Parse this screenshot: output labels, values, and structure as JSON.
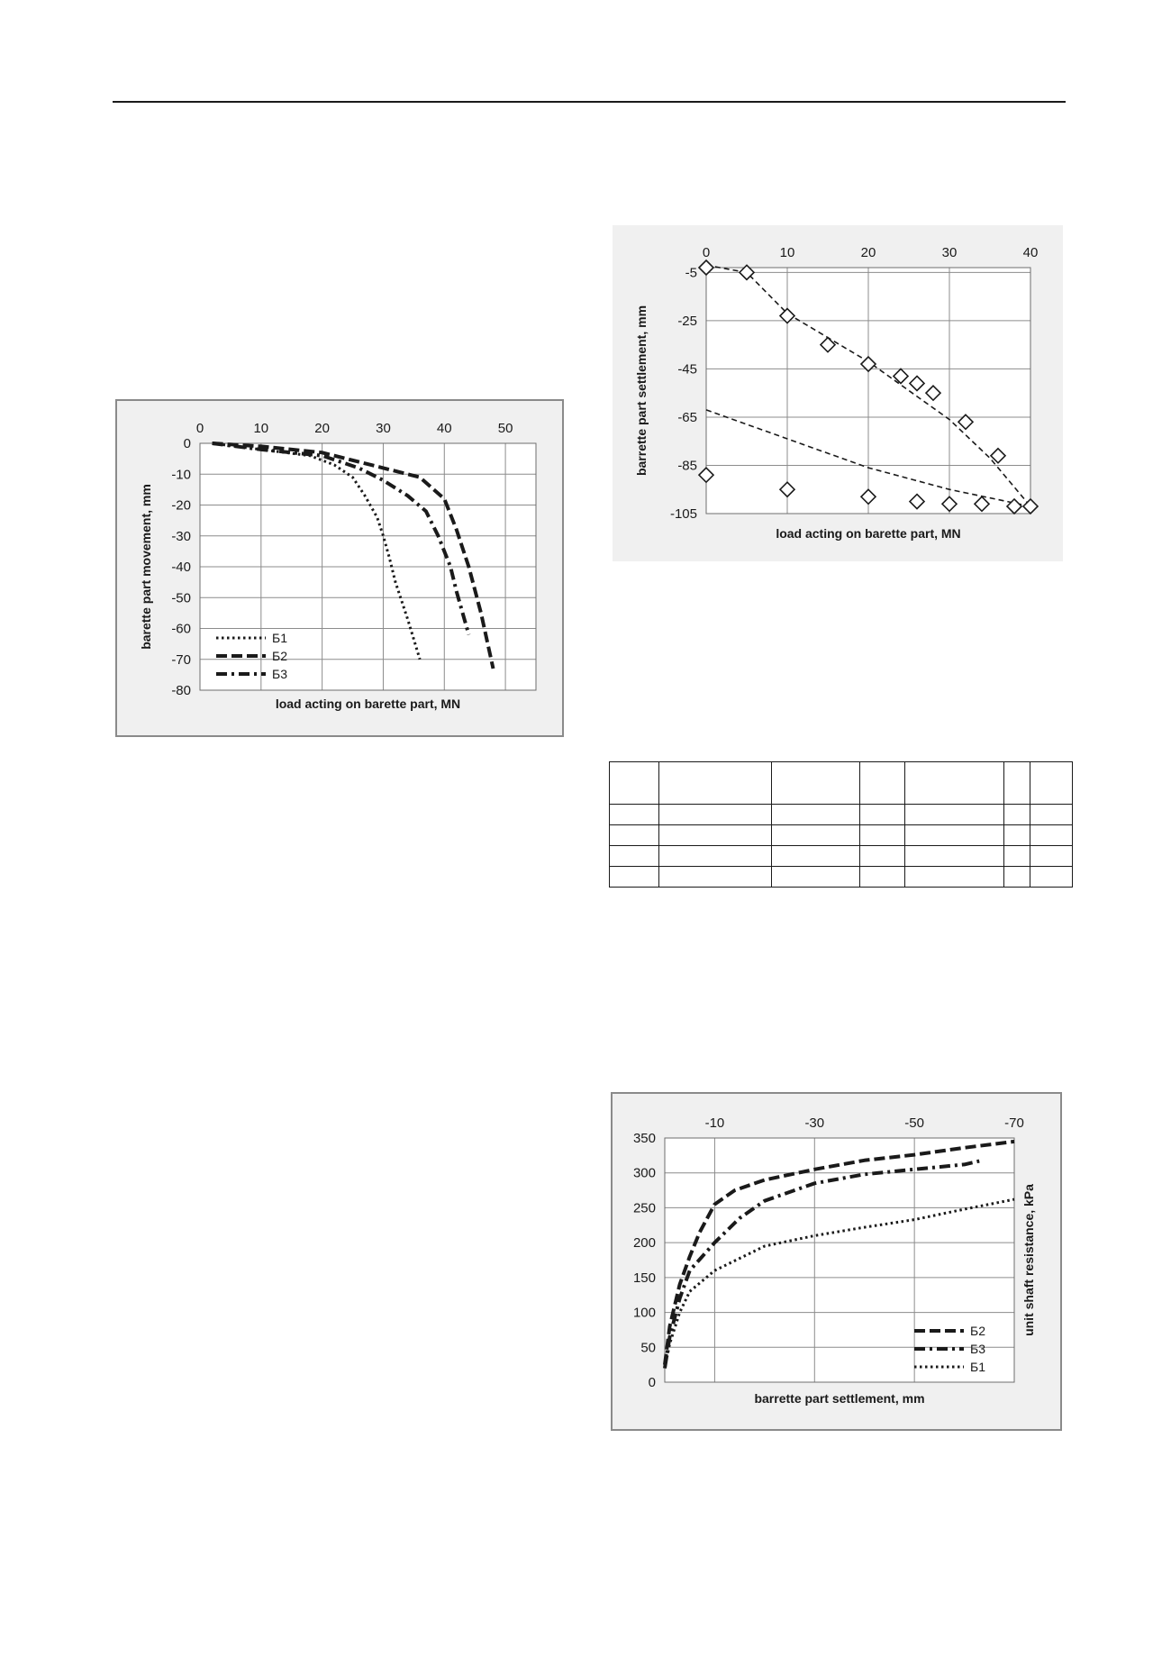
{
  "chart_data": [
    {
      "type": "line",
      "title": "",
      "xlabel": "load acting on barette part, MN",
      "ylabel": "barette part movement, mm",
      "xlim": [
        0,
        55
      ],
      "ylim": [
        -80,
        0
      ],
      "xticks": [
        0,
        10,
        20,
        30,
        40,
        50
      ],
      "yticks": [
        0,
        -10,
        -20,
        -30,
        -40,
        -50,
        -60,
        -70,
        -80
      ],
      "x_axis_position": "top",
      "grid": true,
      "legend": "bottom-left",
      "series": [
        {
          "name": "Б1",
          "style": "dotted",
          "x": [
            2,
            10,
            18,
            22,
            25,
            27,
            29,
            30,
            31,
            32,
            34,
            36
          ],
          "y": [
            0,
            -2,
            -4,
            -7,
            -11,
            -17,
            -24,
            -30,
            -37,
            -45,
            -57,
            -70
          ]
        },
        {
          "name": "Б2",
          "style": "dashed",
          "x": [
            2,
            10,
            20,
            30,
            36,
            40,
            42,
            44,
            46,
            48
          ],
          "y": [
            0,
            -1,
            -3,
            -8,
            -11,
            -18,
            -28,
            -40,
            -55,
            -73
          ]
        },
        {
          "name": "Б3",
          "style": "dash-dot",
          "x": [
            2,
            10,
            20,
            26,
            30,
            34,
            37,
            39,
            41,
            42,
            44
          ],
          "y": [
            0,
            -2,
            -4,
            -8,
            -12,
            -17,
            -22,
            -30,
            -40,
            -48,
            -62
          ]
        }
      ]
    },
    {
      "type": "scatter",
      "title": "",
      "xlabel": "load acting on barette part, MN",
      "ylabel": "barrette part settlement, mm",
      "xlim": [
        0,
        40
      ],
      "ylim": [
        -105,
        -3
      ],
      "xticks": [
        0,
        10,
        20,
        30,
        40
      ],
      "yticks": [
        -5,
        -25,
        -45,
        -65,
        -85,
        -105
      ],
      "x_axis_position": "top",
      "grid": true,
      "marker": "diamond",
      "points": [
        {
          "x": 0,
          "y": -3
        },
        {
          "x": 5,
          "y": -5
        },
        {
          "x": 10,
          "y": -23
        },
        {
          "x": 15,
          "y": -35
        },
        {
          "x": 20,
          "y": -43
        },
        {
          "x": 24,
          "y": -48
        },
        {
          "x": 26,
          "y": -51
        },
        {
          "x": 28,
          "y": -55
        },
        {
          "x": 32,
          "y": -67
        },
        {
          "x": 36,
          "y": -81
        },
        {
          "x": 38,
          "y": -102
        },
        {
          "x": 40,
          "y": -102
        },
        {
          "x": 0,
          "y": -89
        },
        {
          "x": 10,
          "y": -95
        },
        {
          "x": 20,
          "y": -98
        },
        {
          "x": 26,
          "y": -100
        },
        {
          "x": 30,
          "y": -101
        },
        {
          "x": 34,
          "y": -101
        }
      ],
      "trendlines": [
        {
          "style": "dashed",
          "x": [
            0,
            5,
            10,
            20,
            30,
            35,
            40
          ],
          "y": [
            -2,
            -5,
            -22,
            -42,
            -66,
            -82,
            -102
          ]
        },
        {
          "style": "dashed",
          "x": [
            0,
            10,
            20,
            30,
            40
          ],
          "y": [
            -62,
            -74,
            -86,
            -95,
            -102
          ]
        }
      ]
    },
    {
      "type": "line",
      "title": "",
      "xlabel": "barrette part settlement, mm",
      "ylabel": "unit shaft resistance, kPa",
      "xlim": [
        0,
        -70
      ],
      "ylim": [
        0,
        350
      ],
      "xticks": [
        -10,
        -30,
        -50,
        -70
      ],
      "yticks": [
        0,
        50,
        100,
        150,
        200,
        250,
        300,
        350
      ],
      "x_axis_position": "top",
      "grid": true,
      "legend": "bottom-right",
      "series": [
        {
          "name": "Б2",
          "style": "dashed",
          "x": [
            0,
            -1,
            -3,
            -5,
            -7,
            -10,
            -14,
            -20,
            -30,
            -40,
            -50,
            -60,
            -70
          ],
          "y": [
            25,
            80,
            140,
            180,
            215,
            255,
            275,
            290,
            305,
            318,
            326,
            336,
            345
          ]
        },
        {
          "name": "Б3",
          "style": "dash-dot",
          "x": [
            0,
            -1,
            -3,
            -5,
            -10,
            -15,
            -20,
            -30,
            -40,
            -50,
            -60,
            -63
          ],
          "y": [
            20,
            65,
            120,
            160,
            200,
            235,
            260,
            285,
            298,
            305,
            312,
            317
          ]
        },
        {
          "name": "Б1",
          "style": "dotted",
          "x": [
            0,
            -1,
            -3,
            -5,
            -10,
            -20,
            -30,
            -40,
            -50,
            -60,
            -70
          ],
          "y": [
            20,
            55,
            100,
            130,
            160,
            195,
            210,
            222,
            233,
            248,
            262
          ]
        }
      ]
    }
  ]
}
